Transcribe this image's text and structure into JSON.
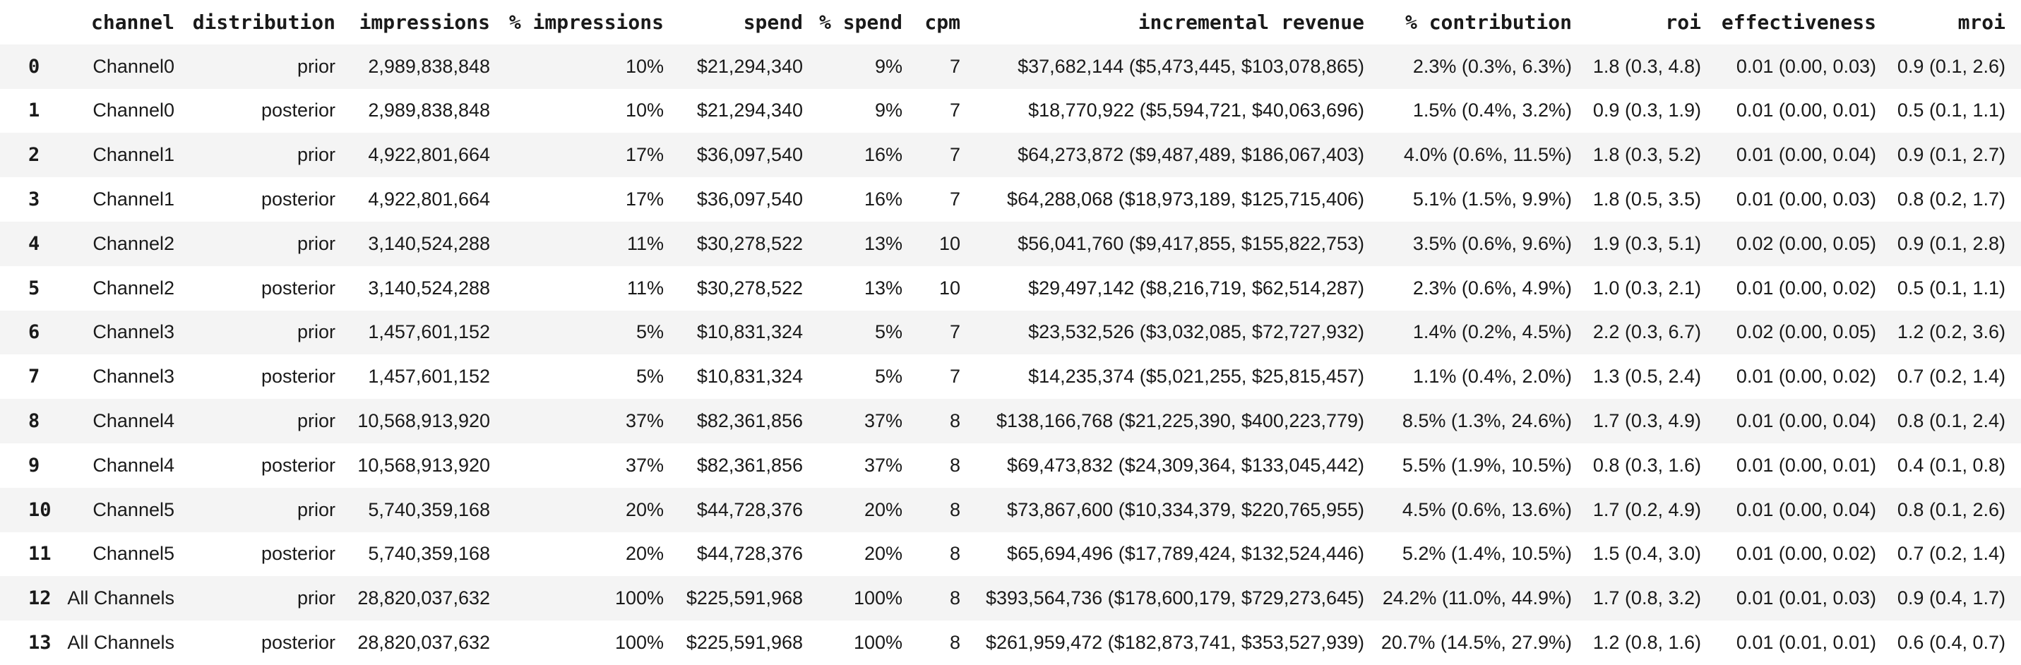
{
  "colors": {
    "background": "#ffffff",
    "stripe": "#f4f4f4",
    "row_bg": "#ffffff",
    "text": "#1a1a1a"
  },
  "chart_data": {
    "type": "table",
    "title": "",
    "columns": [
      "",
      "channel",
      "distribution",
      "impressions",
      "% impressions",
      "spend",
      "% spend",
      "cpm",
      "incremental revenue",
      "% contribution",
      "roi",
      "effectiveness",
      "mroi"
    ],
    "column_keys": [
      "index",
      "channel",
      "distribution",
      "impressions",
      "pct-impressions",
      "spend",
      "pct-spend",
      "cpm",
      "incremental-revenue",
      "pct-contribution",
      "roi",
      "effectiveness",
      "mroi"
    ],
    "rows": [
      [
        "0",
        "Channel0",
        "prior",
        "2,989,838,848",
        "10%",
        "$21,294,340",
        "9%",
        "7",
        "$37,682,144 ($5,473,445, $103,078,865)",
        "2.3% (0.3%, 6.3%)",
        "1.8 (0.3, 4.8)",
        "0.01 (0.00, 0.03)",
        "0.9 (0.1, 2.6)"
      ],
      [
        "1",
        "Channel0",
        "posterior",
        "2,989,838,848",
        "10%",
        "$21,294,340",
        "9%",
        "7",
        "$18,770,922 ($5,594,721, $40,063,696)",
        "1.5% (0.4%, 3.2%)",
        "0.9 (0.3, 1.9)",
        "0.01 (0.00, 0.01)",
        "0.5 (0.1, 1.1)"
      ],
      [
        "2",
        "Channel1",
        "prior",
        "4,922,801,664",
        "17%",
        "$36,097,540",
        "16%",
        "7",
        "$64,273,872 ($9,487,489, $186,067,403)",
        "4.0% (0.6%, 11.5%)",
        "1.8 (0.3, 5.2)",
        "0.01 (0.00, 0.04)",
        "0.9 (0.1, 2.7)"
      ],
      [
        "3",
        "Channel1",
        "posterior",
        "4,922,801,664",
        "17%",
        "$36,097,540",
        "16%",
        "7",
        "$64,288,068 ($18,973,189, $125,715,406)",
        "5.1% (1.5%, 9.9%)",
        "1.8 (0.5, 3.5)",
        "0.01 (0.00, 0.03)",
        "0.8 (0.2, 1.7)"
      ],
      [
        "4",
        "Channel2",
        "prior",
        "3,140,524,288",
        "11%",
        "$30,278,522",
        "13%",
        "10",
        "$56,041,760 ($9,417,855, $155,822,753)",
        "3.5% (0.6%, 9.6%)",
        "1.9 (0.3, 5.1)",
        "0.02 (0.00, 0.05)",
        "0.9 (0.1, 2.8)"
      ],
      [
        "5",
        "Channel2",
        "posterior",
        "3,140,524,288",
        "11%",
        "$30,278,522",
        "13%",
        "10",
        "$29,497,142 ($8,216,719, $62,514,287)",
        "2.3% (0.6%, 4.9%)",
        "1.0 (0.3, 2.1)",
        "0.01 (0.00, 0.02)",
        "0.5 (0.1, 1.1)"
      ],
      [
        "6",
        "Channel3",
        "prior",
        "1,457,601,152",
        "5%",
        "$10,831,324",
        "5%",
        "7",
        "$23,532,526 ($3,032,085, $72,727,932)",
        "1.4% (0.2%, 4.5%)",
        "2.2 (0.3, 6.7)",
        "0.02 (0.00, 0.05)",
        "1.2 (0.2, 3.6)"
      ],
      [
        "7",
        "Channel3",
        "posterior",
        "1,457,601,152",
        "5%",
        "$10,831,324",
        "5%",
        "7",
        "$14,235,374 ($5,021,255, $25,815,457)",
        "1.1% (0.4%, 2.0%)",
        "1.3 (0.5, 2.4)",
        "0.01 (0.00, 0.02)",
        "0.7 (0.2, 1.4)"
      ],
      [
        "8",
        "Channel4",
        "prior",
        "10,568,913,920",
        "37%",
        "$82,361,856",
        "37%",
        "8",
        "$138,166,768 ($21,225,390, $400,223,779)",
        "8.5% (1.3%, 24.6%)",
        "1.7 (0.3, 4.9)",
        "0.01 (0.00, 0.04)",
        "0.8 (0.1, 2.4)"
      ],
      [
        "9",
        "Channel4",
        "posterior",
        "10,568,913,920",
        "37%",
        "$82,361,856",
        "37%",
        "8",
        "$69,473,832 ($24,309,364, $133,045,442)",
        "5.5% (1.9%, 10.5%)",
        "0.8 (0.3, 1.6)",
        "0.01 (0.00, 0.01)",
        "0.4 (0.1, 0.8)"
      ],
      [
        "10",
        "Channel5",
        "prior",
        "5,740,359,168",
        "20%",
        "$44,728,376",
        "20%",
        "8",
        "$73,867,600 ($10,334,379, $220,765,955)",
        "4.5% (0.6%, 13.6%)",
        "1.7 (0.2, 4.9)",
        "0.01 (0.00, 0.04)",
        "0.8 (0.1, 2.6)"
      ],
      [
        "11",
        "Channel5",
        "posterior",
        "5,740,359,168",
        "20%",
        "$44,728,376",
        "20%",
        "8",
        "$65,694,496 ($17,789,424, $132,524,446)",
        "5.2% (1.4%, 10.5%)",
        "1.5 (0.4, 3.0)",
        "0.01 (0.00, 0.02)",
        "0.7 (0.2, 1.4)"
      ],
      [
        "12",
        "All Channels",
        "prior",
        "28,820,037,632",
        "100%",
        "$225,591,968",
        "100%",
        "8",
        "$393,564,736 ($178,600,179, $729,273,645)",
        "24.2% (11.0%, 44.9%)",
        "1.7 (0.8, 3.2)",
        "0.01 (0.01, 0.03)",
        "0.9 (0.4, 1.7)"
      ],
      [
        "13",
        "All Channels",
        "posterior",
        "28,820,037,632",
        "100%",
        "$225,591,968",
        "100%",
        "8",
        "$261,959,472 ($182,873,741, $353,527,939)",
        "20.7% (14.5%, 27.9%)",
        "1.2 (0.8, 1.6)",
        "0.01 (0.01, 0.01)",
        "0.6 (0.4, 0.7)"
      ]
    ]
  }
}
